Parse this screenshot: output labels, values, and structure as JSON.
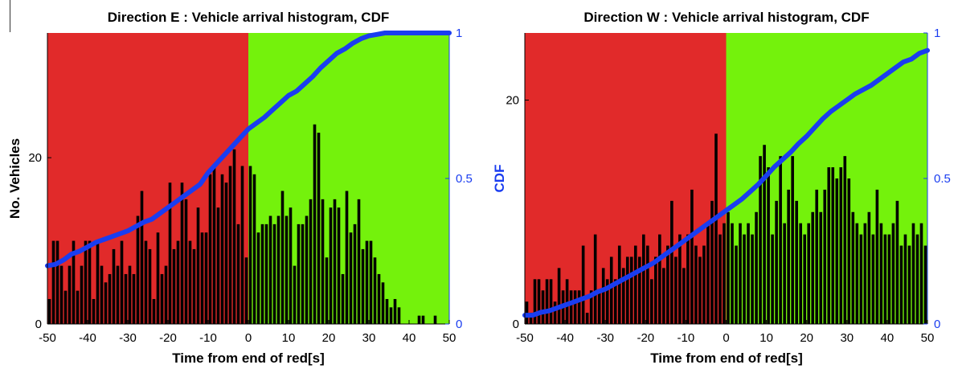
{
  "colors": {
    "red_phase": "#e12a2a",
    "green_phase": "#74f20c",
    "bar_fill": "#000000",
    "cdf_line": "#1a3df0",
    "cdf_axis": "#1a3df0",
    "axis_text": "#000000"
  },
  "chart_data": [
    {
      "type": "bar",
      "title": "Direction E : Vehicle arrival histogram, CDF",
      "xlabel": "Time from end of red[s]",
      "ylabel": "No. Vehicles",
      "y2label": "",
      "xlim": [
        -50,
        50
      ],
      "ylim": [
        0,
        35
      ],
      "y2lim": [
        0,
        1
      ],
      "xticks": [
        "-50",
        "-40",
        "-30",
        "-20",
        "-10",
        "0",
        "10",
        "20",
        "30",
        "40",
        "50"
      ],
      "yticks": [
        "0",
        "20"
      ],
      "y2ticks": [
        "0",
        "0.5",
        "1"
      ],
      "phases": [
        {
          "name": "red",
          "from": -50,
          "to": 0
        },
        {
          "name": "green",
          "from": 0,
          "to": 50
        }
      ],
      "x": [
        -49.5,
        -48.5,
        -47.5,
        -46.5,
        -45.5,
        -44.5,
        -43.5,
        -42.5,
        -41.5,
        -40.5,
        -39.5,
        -38.5,
        -37.5,
        -36.5,
        -35.5,
        -34.5,
        -33.5,
        -32.5,
        -31.5,
        -30.5,
        -29.5,
        -28.5,
        -27.5,
        -26.5,
        -25.5,
        -24.5,
        -23.5,
        -22.5,
        -21.5,
        -20.5,
        -19.5,
        -18.5,
        -17.5,
        -16.5,
        -15.5,
        -14.5,
        -13.5,
        -12.5,
        -11.5,
        -10.5,
        -9.5,
        -8.5,
        -7.5,
        -6.5,
        -5.5,
        -4.5,
        -3.5,
        -2.5,
        -1.5,
        -0.5,
        0.5,
        1.5,
        2.5,
        3.5,
        4.5,
        5.5,
        6.5,
        7.5,
        8.5,
        9.5,
        10.5,
        11.5,
        12.5,
        13.5,
        14.5,
        15.5,
        16.5,
        17.5,
        18.5,
        19.5,
        20.5,
        21.5,
        22.5,
        23.5,
        24.5,
        25.5,
        26.5,
        27.5,
        28.5,
        29.5,
        30.5,
        31.5,
        32.5,
        33.5,
        34.5,
        35.5,
        36.5,
        37.5,
        38.5,
        39.5,
        40.5,
        41.5,
        42.5,
        43.5,
        44.5,
        45.5,
        46.5,
        47.5,
        48.5,
        49.5
      ],
      "values": [
        3,
        10,
        10,
        7,
        4,
        7,
        10,
        4,
        7,
        10,
        10,
        3,
        10,
        7,
        5,
        6,
        9,
        7,
        10,
        6,
        7,
        6,
        13,
        16,
        10,
        9,
        3,
        11,
        6,
        7,
        17,
        9,
        10,
        17,
        15,
        10,
        9,
        14,
        11,
        11,
        18,
        19,
        14,
        18,
        17,
        19,
        21,
        12,
        19,
        8,
        19,
        18,
        11,
        12,
        12,
        13,
        12,
        13,
        16,
        13,
        14,
        7,
        12,
        12,
        13,
        15,
        24,
        23,
        15,
        8,
        14,
        15,
        14,
        6,
        16,
        11,
        12,
        15,
        9,
        10,
        10,
        8,
        6,
        5,
        3,
        2,
        3,
        2,
        0,
        0,
        0,
        0,
        1,
        1,
        0,
        0,
        1,
        0,
        0,
        0
      ],
      "cdf": {
        "x": [
          -50,
          -48,
          -46,
          -44,
          -42,
          -40,
          -38,
          -36,
          -34,
          -32,
          -30,
          -28,
          -26,
          -24,
          -22,
          -20,
          -18,
          -16,
          -14,
          -12,
          -10,
          -8,
          -6,
          -4,
          -2,
          0,
          2,
          4,
          6,
          8,
          10,
          12,
          14,
          16,
          18,
          20,
          22,
          24,
          26,
          28,
          30,
          32,
          34,
          36,
          38,
          40,
          42,
          44,
          46,
          48,
          50
        ],
        "y": [
          0.2,
          0.205,
          0.22,
          0.24,
          0.25,
          0.265,
          0.28,
          0.29,
          0.3,
          0.31,
          0.32,
          0.335,
          0.35,
          0.36,
          0.38,
          0.4,
          0.42,
          0.44,
          0.46,
          0.48,
          0.52,
          0.55,
          0.58,
          0.61,
          0.64,
          0.67,
          0.69,
          0.71,
          0.735,
          0.76,
          0.785,
          0.8,
          0.825,
          0.85,
          0.88,
          0.905,
          0.93,
          0.945,
          0.965,
          0.98,
          0.99,
          0.995,
          1,
          1,
          1,
          1,
          1,
          1,
          1,
          1,
          1
        ]
      }
    },
    {
      "type": "bar",
      "title": "Direction W : Vehicle arrival histogram, CDF",
      "xlabel": "Time from end of red[s]",
      "ylabel": "",
      "y2label": "CDF",
      "xlim": [
        -50,
        50
      ],
      "ylim": [
        0,
        26
      ],
      "y2lim": [
        0,
        1
      ],
      "xticks": [
        "-50",
        "-40",
        "-30",
        "-20",
        "-10",
        "0",
        "10",
        "20",
        "30",
        "40",
        "50"
      ],
      "yticks": [
        "0",
        "20"
      ],
      "y2ticks": [
        "0",
        "0.5",
        "1"
      ],
      "phases": [
        {
          "name": "red",
          "from": -50,
          "to": 0
        },
        {
          "name": "green",
          "from": 0,
          "to": 50
        }
      ],
      "x": [
        -49.5,
        -48.5,
        -47.5,
        -46.5,
        -45.5,
        -44.5,
        -43.5,
        -42.5,
        -41.5,
        -40.5,
        -39.5,
        -38.5,
        -37.5,
        -36.5,
        -35.5,
        -34.5,
        -33.5,
        -32.5,
        -31.5,
        -30.5,
        -29.5,
        -28.5,
        -27.5,
        -26.5,
        -25.5,
        -24.5,
        -23.5,
        -22.5,
        -21.5,
        -20.5,
        -19.5,
        -18.5,
        -17.5,
        -16.5,
        -15.5,
        -14.5,
        -13.5,
        -12.5,
        -11.5,
        -10.5,
        -9.5,
        -8.5,
        -7.5,
        -6.5,
        -5.5,
        -4.5,
        -3.5,
        -2.5,
        -1.5,
        -0.5,
        0.5,
        1.5,
        2.5,
        3.5,
        4.5,
        5.5,
        6.5,
        7.5,
        8.5,
        9.5,
        10.5,
        11.5,
        12.5,
        13.5,
        14.5,
        15.5,
        16.5,
        17.5,
        18.5,
        19.5,
        20.5,
        21.5,
        22.5,
        23.5,
        24.5,
        25.5,
        26.5,
        27.5,
        28.5,
        29.5,
        30.5,
        31.5,
        32.5,
        33.5,
        34.5,
        35.5,
        36.5,
        37.5,
        38.5,
        39.5,
        40.5,
        41.5,
        42.5,
        43.5,
        44.5,
        45.5,
        46.5,
        47.5,
        48.5,
        49.5
      ],
      "values": [
        2,
        1,
        4,
        4,
        3,
        4,
        4,
        2,
        5,
        3,
        4,
        3,
        3,
        3,
        7,
        1,
        3,
        8,
        3,
        5,
        4,
        6,
        4,
        7,
        5,
        6,
        6,
        7,
        6,
        8,
        7,
        4,
        6,
        8,
        5,
        7,
        11,
        6,
        8,
        5,
        8,
        12,
        7,
        6,
        7,
        9,
        11,
        17,
        8,
        9,
        10,
        9,
        7,
        9,
        8,
        9,
        8,
        10,
        15,
        16,
        14,
        8,
        11,
        15,
        9,
        12,
        15,
        11,
        9,
        8,
        9,
        10,
        12,
        10,
        12,
        14,
        14,
        13,
        14,
        15,
        13,
        10,
        9,
        8,
        9,
        10,
        8,
        12,
        9,
        8,
        8,
        9,
        11,
        7,
        8,
        7,
        9,
        8,
        9,
        7
      ],
      "cdf": {
        "x": [
          -50,
          -48,
          -46,
          -44,
          -42,
          -40,
          -38,
          -36,
          -34,
          -32,
          -30,
          -28,
          -26,
          -24,
          -22,
          -20,
          -18,
          -16,
          -14,
          -12,
          -10,
          -8,
          -6,
          -4,
          -2,
          0,
          2,
          4,
          6,
          8,
          10,
          12,
          14,
          16,
          18,
          20,
          22,
          24,
          26,
          28,
          30,
          32,
          34,
          36,
          38,
          40,
          42,
          44,
          46,
          48,
          50
        ],
        "y": [
          0.03,
          0.03,
          0.04,
          0.045,
          0.055,
          0.065,
          0.075,
          0.085,
          0.095,
          0.11,
          0.12,
          0.135,
          0.15,
          0.165,
          0.18,
          0.195,
          0.21,
          0.23,
          0.25,
          0.27,
          0.29,
          0.31,
          0.33,
          0.35,
          0.37,
          0.39,
          0.41,
          0.43,
          0.455,
          0.48,
          0.51,
          0.54,
          0.565,
          0.59,
          0.62,
          0.645,
          0.675,
          0.705,
          0.73,
          0.75,
          0.77,
          0.79,
          0.805,
          0.82,
          0.84,
          0.86,
          0.88,
          0.9,
          0.91,
          0.93,
          0.94
        ]
      }
    }
  ]
}
